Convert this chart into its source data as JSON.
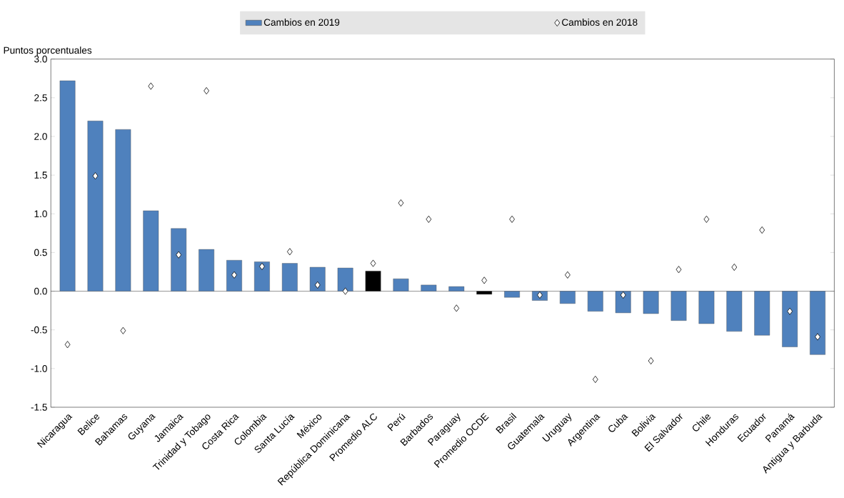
{
  "chart_data": {
    "type": "bar",
    "ylabel": "Puntos porcentuales",
    "legend": "top",
    "categories": [
      "Nicaragua",
      "Belice",
      "Bahamas",
      "Guyana",
      "Jamaica",
      "Trinidad y Tobago",
      "Costa Rica",
      "Colombia",
      "Santa Lucía",
      "México",
      "República Dominicana",
      "Promedio ALC",
      "Perú",
      "Barbados",
      "Paraguay",
      "Promedio OCDE",
      "Brasil",
      "Guatemala",
      "Uruguay",
      "Argentina",
      "Cuba",
      "Bolivia",
      "El Salvador",
      "Chile",
      "Honduras",
      "Ecuador",
      "Panamá",
      "Antigua y Barbuda"
    ],
    "series": [
      {
        "name": "Cambios en 2019",
        "colors": [
          "#4f81bd",
          "#4f81bd",
          "#4f81bd",
          "#4f81bd",
          "#4f81bd",
          "#4f81bd",
          "#4f81bd",
          "#4f81bd",
          "#4f81bd",
          "#4f81bd",
          "#4f81bd",
          "#000000",
          "#4f81bd",
          "#4f81bd",
          "#4f81bd",
          "#000000",
          "#4f81bd",
          "#4f81bd",
          "#4f81bd",
          "#4f81bd",
          "#4f81bd",
          "#4f81bd",
          "#4f81bd",
          "#4f81bd",
          "#4f81bd",
          "#4f81bd",
          "#4f81bd",
          "#4f81bd"
        ],
        "values": [
          2.72,
          2.2,
          2.09,
          1.04,
          0.81,
          0.54,
          0.4,
          0.38,
          0.36,
          0.31,
          0.3,
          0.26,
          0.16,
          0.08,
          0.06,
          -0.04,
          -0.08,
          -0.12,
          -0.16,
          -0.26,
          -0.28,
          -0.29,
          -0.38,
          -0.42,
          -0.52,
          -0.57,
          -0.72,
          -0.82
        ]
      },
      {
        "name": "Cambios en 2018",
        "type": "scatter",
        "marker": "diamond",
        "color": "#000000",
        "values": [
          -0.69,
          1.49,
          -0.51,
          2.65,
          0.47,
          2.59,
          0.21,
          0.32,
          0.51,
          0.08,
          0.0,
          0.36,
          1.14,
          0.93,
          -0.22,
          0.14,
          0.93,
          -0.05,
          0.21,
          -1.14,
          -0.05,
          -0.9,
          0.28,
          0.93,
          0.31,
          0.79,
          -0.26,
          -0.59
        ]
      }
    ],
    "ylim": [
      -1.5,
      3.0
    ],
    "yticks": [
      {
        "value": -1.5,
        "label": "-1.5"
      },
      {
        "value": -1,
        "label": "-1.0"
      },
      {
        "value": -0.5,
        "label": "-0.5"
      },
      {
        "value": 0,
        "label": "0.0"
      },
      {
        "value": 0.5,
        "label": "0.5"
      },
      {
        "value": 1,
        "label": "1.0"
      },
      {
        "value": 1.5,
        "label": "1.5"
      },
      {
        "value": 2,
        "label": "2.0"
      },
      {
        "value": 2.5,
        "label": "2.5"
      },
      {
        "value": 3,
        "label": "3.0"
      }
    ]
  }
}
